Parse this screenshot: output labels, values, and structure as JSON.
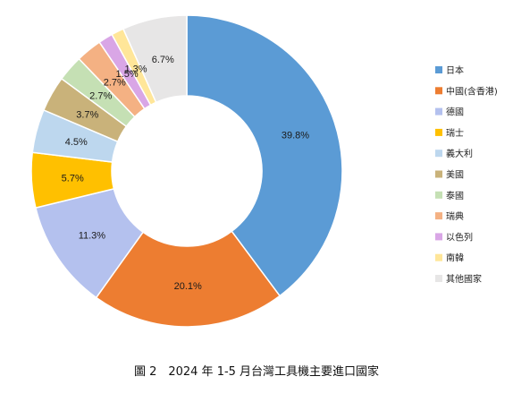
{
  "chart_data": {
    "type": "pie",
    "donut": true,
    "categories": [
      "日本",
      "中國(含香港)",
      "德國",
      "瑞士",
      "義大利",
      "美國",
      "泰國",
      "瑞典",
      "以色列",
      "南韓",
      "其他國家"
    ],
    "values": [
      39.8,
      20.1,
      11.3,
      5.7,
      4.5,
      3.7,
      2.7,
      2.7,
      1.5,
      1.3,
      6.7
    ],
    "labels": [
      "39.8%",
      "20.1%",
      "11.3%",
      "5.7%",
      "4.5%",
      "3.7%",
      "2.7%",
      "2.7%",
      "1.5%",
      "1.3%",
      "6.7%"
    ],
    "colors": [
      "#5B9BD5",
      "#ED7D31",
      "#B4C1EE",
      "#FFC000",
      "#BDD7EE",
      "#C9B27A",
      "#C5E0B4",
      "#F4B183",
      "#D9A6E6",
      "#FFE699",
      "#E7E6E6"
    ],
    "legend_position": "right",
    "start_angle": "12 o'clock, clockwise"
  },
  "caption": "圖 2　2024 年 1-5 月台灣工具機主要進口國家"
}
